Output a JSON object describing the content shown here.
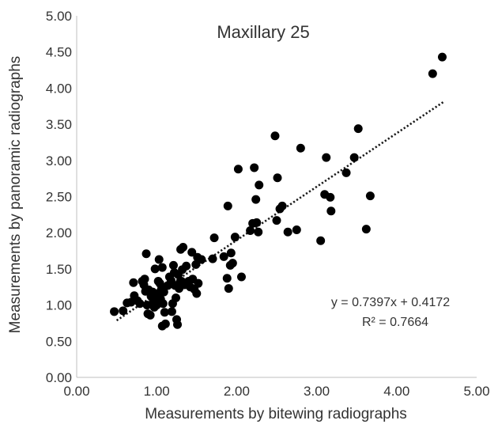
{
  "chart_data": {
    "type": "scatter",
    "title": "Maxillary 25",
    "xlabel": "Measurements by bitewing radiographs",
    "ylabel": "Measurements by panoramic radiographs",
    "xlim": [
      0,
      5
    ],
    "ylim": [
      0,
      5
    ],
    "xticks": [
      "0.00",
      "1.00",
      "2.00",
      "3.00",
      "4.00",
      "5.00"
    ],
    "yticks": [
      "0.00",
      "0.50",
      "1.00",
      "1.50",
      "2.00",
      "2.50",
      "3.00",
      "3.50",
      "4.00",
      "4.50",
      "5.00"
    ],
    "grid": false,
    "point_color": "#000000",
    "trendline": {
      "style": "dotted",
      "slope": 0.7397,
      "intercept": 0.4172,
      "x_range": [
        0.5,
        4.6
      ],
      "equation": "y = 0.7397x + 0.4172",
      "r_squared": "R² = 0.7664"
    },
    "points": [
      [
        0.47,
        0.91
      ],
      [
        0.58,
        0.92
      ],
      [
        0.63,
        1.03
      ],
      [
        0.68,
        1.04
      ],
      [
        0.71,
        1.31
      ],
      [
        0.72,
        1.13
      ],
      [
        0.76,
        1.06
      ],
      [
        0.79,
        1.02
      ],
      [
        0.82,
        1.33
      ],
      [
        0.84,
        1.28
      ],
      [
        0.85,
        1.36
      ],
      [
        0.86,
        1.19
      ],
      [
        0.87,
        1.71
      ],
      [
        0.88,
        1.0
      ],
      [
        0.89,
        0.88
      ],
      [
        0.9,
        1.21
      ],
      [
        0.92,
        0.86
      ],
      [
        0.93,
        1.12
      ],
      [
        0.95,
        1.18
      ],
      [
        0.96,
        1.06
      ],
      [
        0.97,
        0.97
      ],
      [
        0.98,
        1.5
      ],
      [
        0.99,
        1.09
      ],
      [
        1.0,
        1.0
      ],
      [
        1.01,
        1.16
      ],
      [
        1.02,
        1.33
      ],
      [
        1.03,
        1.63
      ],
      [
        1.04,
        1.3
      ],
      [
        1.05,
        1.08
      ],
      [
        1.06,
        1.22
      ],
      [
        1.07,
        1.52
      ],
      [
        1.07,
        0.71
      ],
      [
        1.08,
        1.02
      ],
      [
        1.09,
        1.18
      ],
      [
        1.1,
        0.9
      ],
      [
        1.11,
        0.74
      ],
      [
        1.14,
        1.27
      ],
      [
        1.16,
        1.39
      ],
      [
        1.18,
        1.34
      ],
      [
        1.19,
        0.91
      ],
      [
        1.2,
        1.02
      ],
      [
        1.21,
        1.55
      ],
      [
        1.22,
        1.45
      ],
      [
        1.23,
        1.27
      ],
      [
        1.24,
        1.1
      ],
      [
        1.25,
        0.8
      ],
      [
        1.26,
        0.73
      ],
      [
        1.27,
        1.42
      ],
      [
        1.28,
        1.23
      ],
      [
        1.29,
        1.31
      ],
      [
        1.3,
        1.77
      ],
      [
        1.31,
        1.33
      ],
      [
        1.32,
        1.49
      ],
      [
        1.33,
        1.8
      ],
      [
        1.35,
        1.28
      ],
      [
        1.37,
        1.54
      ],
      [
        1.4,
        1.33
      ],
      [
        1.42,
        1.25
      ],
      [
        1.44,
        1.73
      ],
      [
        1.45,
        1.36
      ],
      [
        1.47,
        1.22
      ],
      [
        1.49,
        1.56
      ],
      [
        1.5,
        1.16
      ],
      [
        1.51,
        1.66
      ],
      [
        1.52,
        1.3
      ],
      [
        1.56,
        1.63
      ],
      [
        1.7,
        1.64
      ],
      [
        1.72,
        1.93
      ],
      [
        1.84,
        1.67
      ],
      [
        1.88,
        1.37
      ],
      [
        1.89,
        2.37
      ],
      [
        1.9,
        1.23
      ],
      [
        1.92,
        1.55
      ],
      [
        1.93,
        1.72
      ],
      [
        1.95,
        1.58
      ],
      [
        1.98,
        1.94
      ],
      [
        2.02,
        2.88
      ],
      [
        2.06,
        1.39
      ],
      [
        2.17,
        2.03
      ],
      [
        2.2,
        2.13
      ],
      [
        2.22,
        2.9
      ],
      [
        2.24,
        2.46
      ],
      [
        2.25,
        2.14
      ],
      [
        2.27,
        2.01
      ],
      [
        2.28,
        2.66
      ],
      [
        2.48,
        3.34
      ],
      [
        2.5,
        2.17
      ],
      [
        2.51,
        2.76
      ],
      [
        2.54,
        2.33
      ],
      [
        2.57,
        2.37
      ],
      [
        2.64,
        2.01
      ],
      [
        2.75,
        2.04
      ],
      [
        2.8,
        3.17
      ],
      [
        3.05,
        1.89
      ],
      [
        3.1,
        2.53
      ],
      [
        3.12,
        3.04
      ],
      [
        3.17,
        2.49
      ],
      [
        3.18,
        2.3
      ],
      [
        3.37,
        2.83
      ],
      [
        3.47,
        3.04
      ],
      [
        3.52,
        3.44
      ],
      [
        3.62,
        2.05
      ],
      [
        3.67,
        2.51
      ],
      [
        4.45,
        4.2
      ],
      [
        4.57,
        4.43
      ]
    ]
  }
}
